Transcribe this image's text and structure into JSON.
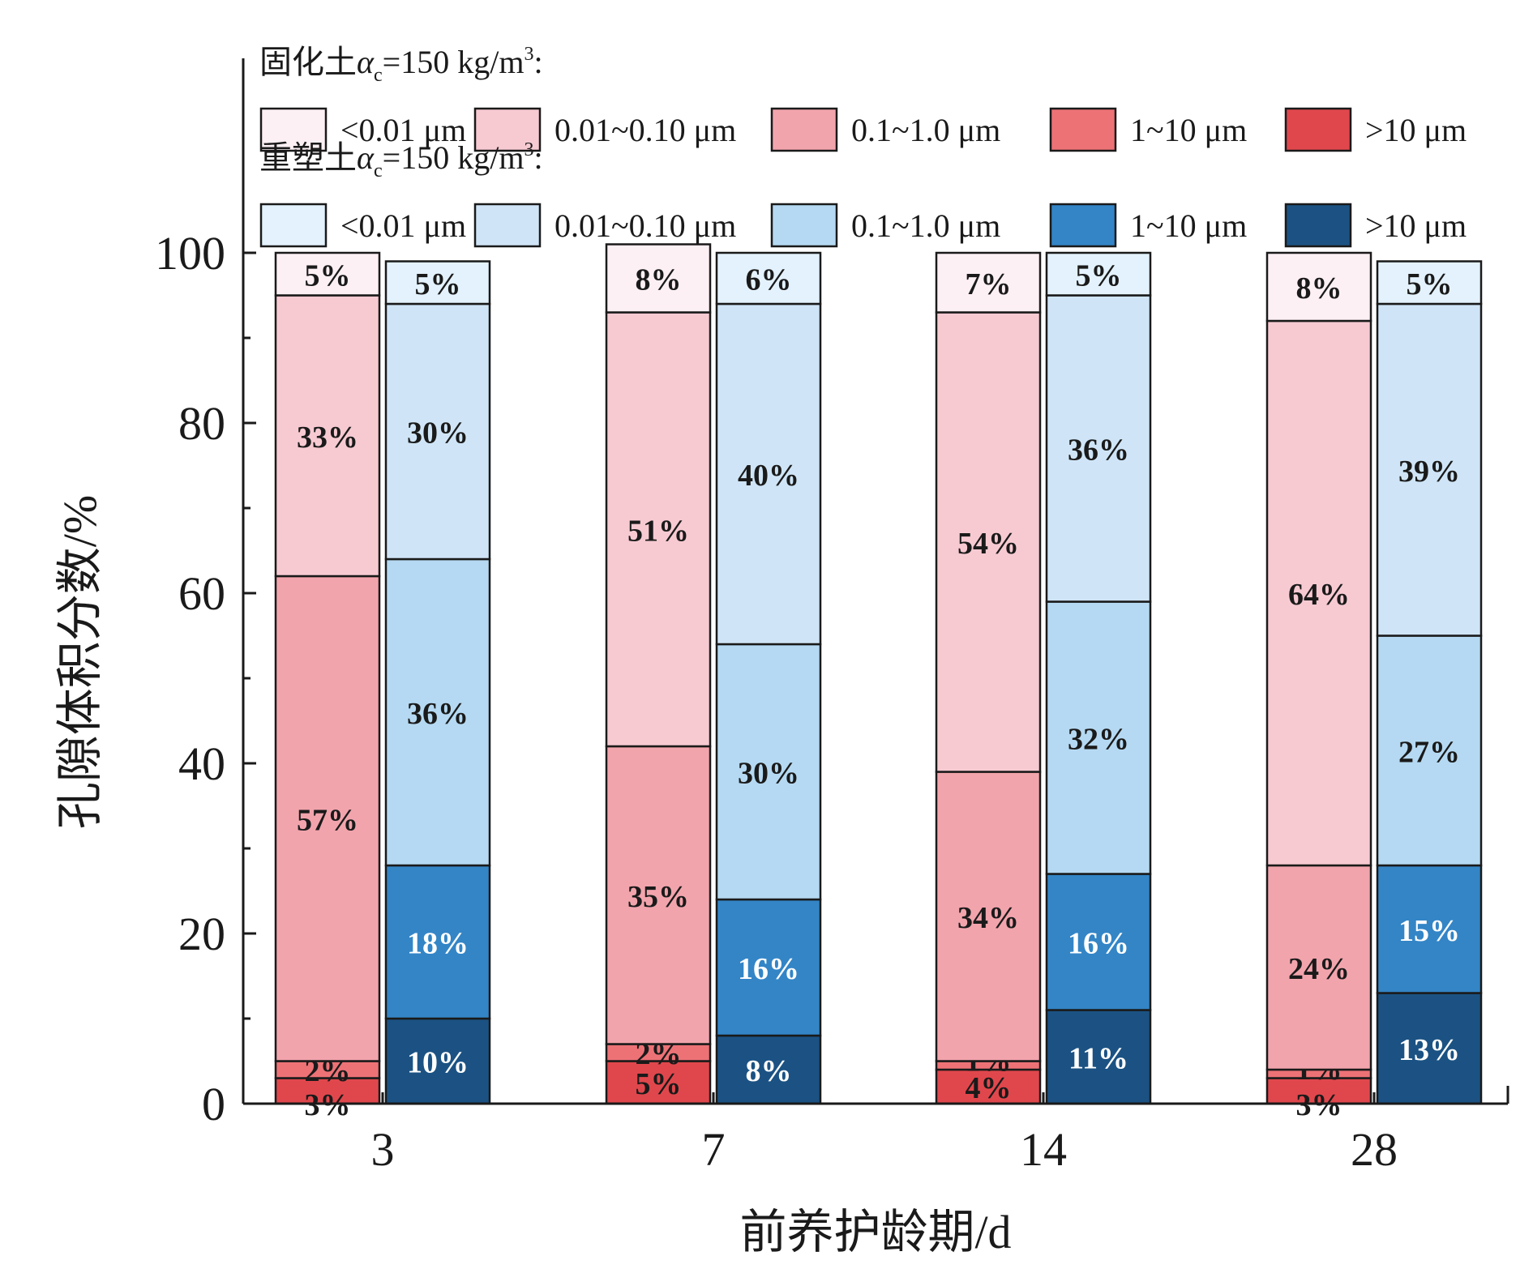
{
  "chart_data": {
    "type": "bar",
    "stacked": true,
    "xlabel": "前养护龄期/d",
    "ylabel": "孔隙体积分数/%",
    "ylim": [
      0,
      100
    ],
    "yticks": [
      0,
      20,
      40,
      60,
      80,
      100
    ],
    "categories": [
      "3",
      "7",
      "14",
      "28"
    ],
    "size_classes": [
      "<0.01 μm",
      "0.01~0.10 μm",
      "0.1~1.0 μm",
      "1~10 μm",
      ">10 μm"
    ],
    "groups": [
      {
        "name": "固化土αc=150 kg/m³:",
        "name_parts": {
          "prefix": "固化土",
          "alpha": "α",
          "sub": "c",
          "rest": "=150 kg/m",
          "sup": "3",
          "suffix": ":"
        },
        "colors": [
          "#fdf0f4",
          "#f7cad2",
          "#f2a4ac",
          "#ed7276",
          "#e0474c"
        ],
        "label_colors": [
          "#1a1a1a",
          "#1a1a1a",
          "#1a1a1a",
          "#1a1a1a",
          "#1a1a1a"
        ],
        "series": [
          {
            "name": ">10 μm",
            "values": [
              3,
              5,
              4,
              3
            ],
            "labels": [
              "3%",
              "5%",
              "4%",
              "3%"
            ]
          },
          {
            "name": "1~10 μm",
            "values": [
              2,
              2,
              1,
              1
            ],
            "labels": [
              "2%",
              "2%",
              "1%",
              "1%"
            ]
          },
          {
            "name": "0.1~1.0 μm",
            "values": [
              57,
              35,
              34,
              24
            ],
            "labels": [
              "57%",
              "35%",
              "34%",
              "24%"
            ]
          },
          {
            "name": "0.01~0.10 μm",
            "values": [
              33,
              51,
              54,
              64
            ],
            "labels": [
              "33%",
              "51%",
              "54%",
              "64%"
            ]
          },
          {
            "name": "<0.01 μm",
            "values": [
              5,
              8,
              7,
              8
            ],
            "labels": [
              "5%",
              "8%",
              "7%",
              "8%"
            ]
          }
        ]
      },
      {
        "name": "重塑土αc=150 kg/m³:",
        "name_parts": {
          "prefix": "重塑土",
          "alpha": "α",
          "sub": "c",
          "rest": "=150 kg/m",
          "sup": "3",
          "suffix": ":"
        },
        "colors": [
          "#e3f2fc",
          "#cfe5f7",
          "#b5d9f2",
          "#3385c6",
          "#1b5283"
        ],
        "series": [
          {
            "name": ">10 μm",
            "values": [
              10,
              8,
              11,
              13
            ],
            "labels": [
              "10%",
              "8%",
              "11%",
              "13%"
            ]
          },
          {
            "name": "1~10 μm",
            "values": [
              18,
              16,
              16,
              15
            ],
            "labels": [
              "18%",
              "16%",
              "16%",
              "15%"
            ]
          },
          {
            "name": "0.1~1.0 μm",
            "values": [
              36,
              30,
              32,
              27
            ],
            "labels": [
              "36%",
              "30%",
              "32%",
              "27%"
            ]
          },
          {
            "name": "0.01~0.10 μm",
            "values": [
              30,
              40,
              36,
              39
            ],
            "labels": [
              "30%",
              "40%",
              "36%",
              "39%"
            ]
          },
          {
            "name": "<0.01 μm",
            "values": [
              5,
              6,
              5,
              5
            ],
            "labels": [
              "5%",
              "6%",
              "5%",
              "5%"
            ]
          }
        ]
      }
    ],
    "legend_position": "top",
    "grid": false
  }
}
